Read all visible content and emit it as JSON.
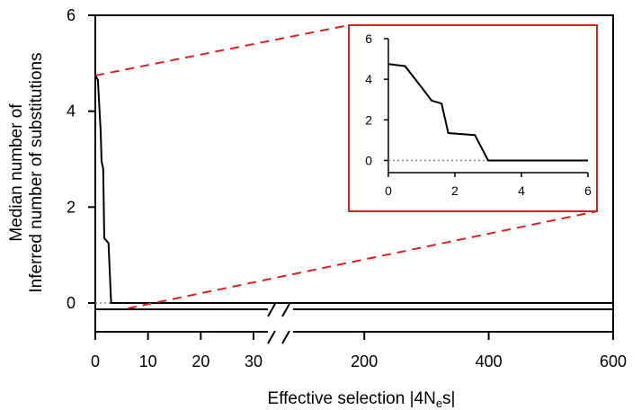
{
  "chart_data": [
    {
      "type": "line",
      "panel": "main",
      "xlabel_prefix": "Effective selection |4N",
      "xlabel_sub": "e",
      "xlabel_suffix": "s|",
      "ylabel_line1": "Median number of",
      "ylabel_line2": "Inferred number of substitutions",
      "x_axis_broken": true,
      "x_segments": [
        {
          "range": [
            0,
            30
          ],
          "ticks": [
            0,
            10,
            20,
            30
          ],
          "tick_labels": [
            "0",
            "10",
            "20",
            "30"
          ]
        },
        {
          "range": [
            100,
            600
          ],
          "ticks": [
            200,
            400,
            600
          ],
          "tick_labels": [
            "200",
            "400",
            "600"
          ]
        }
      ],
      "ylim": [
        -0.6,
        6
      ],
      "yticks": [
        0,
        2,
        4,
        6
      ],
      "ytick_labels": [
        "0",
        "2",
        "4",
        "6"
      ],
      "series": [
        {
          "x": [
            0,
            0.5,
            1.0,
            1.2,
            1.5,
            1.7,
            2.5,
            3.0,
            600
          ],
          "y": [
            4.75,
            4.65,
            3.6,
            2.95,
            2.8,
            1.35,
            1.25,
            0,
            0
          ],
          "color": "#000000"
        }
      ],
      "reference_line": {
        "y": 0,
        "style": "dotted",
        "color": "#888888"
      },
      "zoom_lines_color": "#d62020"
    },
    {
      "type": "line",
      "panel": "inset",
      "xlim": [
        0,
        6
      ],
      "xticks": [
        0,
        2,
        4,
        6
      ],
      "xtick_labels": [
        "0",
        "2",
        "4",
        "6"
      ],
      "ylim": [
        -0.6,
        6
      ],
      "yticks": [
        0,
        2,
        4,
        6
      ],
      "ytick_labels": [
        "0",
        "2",
        "4",
        "6"
      ],
      "series": [
        {
          "x": [
            0,
            0.5,
            1.0,
            1.3,
            1.6,
            1.8,
            2.6,
            3.0,
            6.0
          ],
          "y": [
            4.75,
            4.65,
            3.6,
            2.95,
            2.8,
            1.35,
            1.25,
            0,
            0
          ],
          "color": "#000000"
        }
      ],
      "reference_line": {
        "y": 0,
        "style": "dotted",
        "color": "#888888"
      },
      "frame_color": "#d62020"
    }
  ]
}
